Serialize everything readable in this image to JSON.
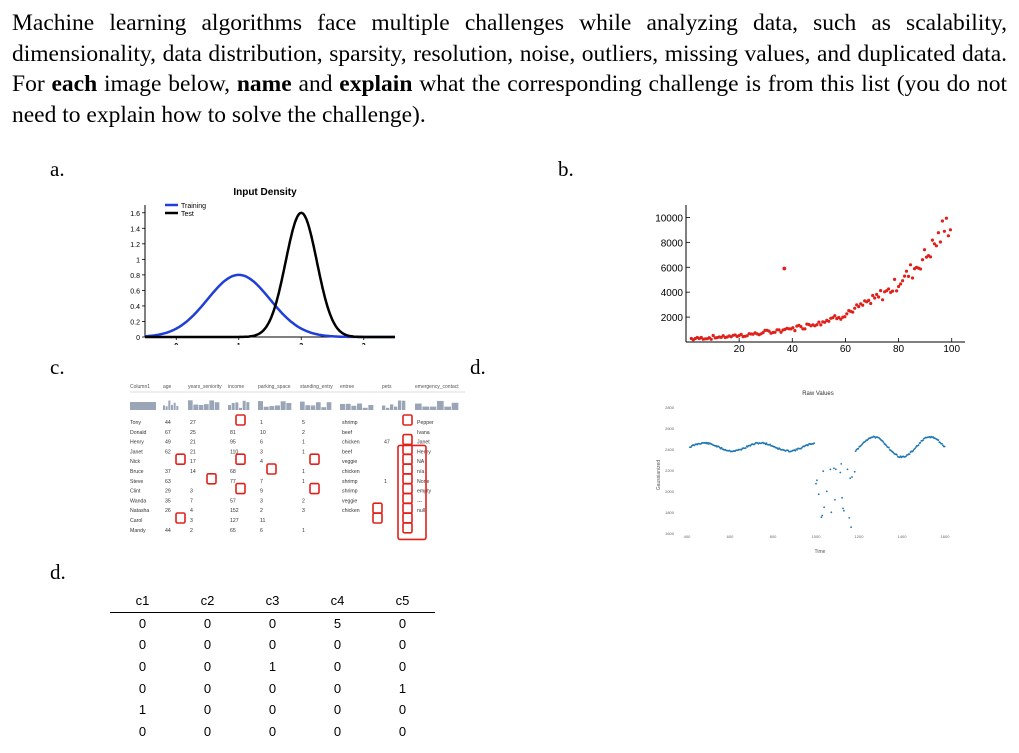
{
  "question": {
    "t1": "Machine learning algorithms face multiple challenges while analyzing data, such as scalability, dimensionality, data distribution, sparsity, resolution, noise, outliers, missing values, and duplicated data. For ",
    "b1": "each",
    "t2": " image below, ",
    "b2": "name",
    "t3": " and ",
    "b3": "explain",
    "t4": " what the corresponding challenge is from this list (you do not need to explain how to solve the challenge)."
  },
  "labels": {
    "a": "a.",
    "b": "b.",
    "c": "c.",
    "d_first": "d.",
    "d_second": "d."
  },
  "fig_a": {
    "title": "Input Density",
    "legend": [
      "Training",
      "Test"
    ],
    "y_ticks": [
      "1.6",
      "1.4",
      "1.2",
      "1",
      "0.8",
      "0.6",
      "0.4",
      "0.2",
      "0"
    ],
    "x_ticks": [
      "0",
      "1",
      "2",
      "3"
    ],
    "colors": {
      "training": "#1f3fd8",
      "test": "#000000"
    },
    "chart_data": {
      "type": "line",
      "title": "Input Density",
      "xlim": [
        -0.5,
        3.5
      ],
      "ylim": [
        0,
        1.7
      ],
      "series": [
        {
          "name": "Training",
          "mean": 1.0,
          "sd": 0.5,
          "peak": 0.8
        },
        {
          "name": "Test",
          "mean": 2.0,
          "sd": 0.25,
          "peak": 1.6
        }
      ]
    }
  },
  "fig_b": {
    "y_ticks": [
      "10000",
      "8000",
      "6000",
      "4000",
      "2000"
    ],
    "x_ticks": [
      "20",
      "40",
      "60",
      "80",
      "100"
    ],
    "color": "#e0201b",
    "chart_data": {
      "type": "scatter",
      "xlim": [
        0,
        105
      ],
      "ylim": [
        0,
        11000
      ],
      "trend": "exponential growth from about 250 at x=0 to about 10000 at x=100",
      "outlier": {
        "x": 37,
        "y": 5900
      }
    }
  },
  "fig_c": {
    "headers": [
      "Column1",
      "age",
      "years_seniority",
      "income",
      "parking_space",
      "standing_entry",
      "entree",
      "pets",
      "emergency_contact"
    ],
    "rows": [
      [
        "Tony",
        "44",
        "27",
        "",
        "1",
        "5",
        "shrimp",
        "",
        "Pepper"
      ],
      [
        "Donald",
        "67",
        "25",
        "81",
        "10",
        "2",
        "beef",
        "",
        "Ivana"
      ],
      [
        "Henry",
        "49",
        "21",
        "95",
        "6",
        "1",
        "chicken",
        "47",
        "Janet"
      ],
      [
        "Janet",
        "62",
        "21",
        "110",
        "3",
        "1",
        "beef",
        "",
        "Henry"
      ],
      [
        "Nick",
        "",
        "17",
        "",
        "4",
        "",
        "veggie",
        "",
        "NA"
      ],
      [
        "Bruce",
        "37",
        "14",
        "68",
        "",
        "1",
        "chicken",
        "",
        "n/a"
      ],
      [
        "Steve",
        "63",
        "",
        "77",
        "7",
        "1",
        "shrimp",
        "1",
        "None"
      ],
      [
        "Clint",
        "29",
        "3",
        "",
        "9",
        "",
        "shrimp",
        "",
        "empty"
      ],
      [
        "Wanda",
        "35",
        "7",
        "57",
        "3",
        "2",
        "veggie",
        "",
        "---"
      ],
      [
        "Natasha",
        "26",
        "4",
        "152",
        "2",
        "3",
        "chicken",
        "",
        "null"
      ],
      [
        "Carol",
        "",
        "3",
        "127",
        "11",
        "",
        "",
        "",
        ""
      ],
      [
        "Mandy",
        "44",
        "2",
        "65",
        "6",
        "1",
        "",
        "",
        ""
      ]
    ],
    "highlight_color": "#e0201b"
  },
  "fig_d": {
    "title": "Raw Values",
    "y_axis_label": "Gaussianized",
    "x_axis_label": "Time",
    "y_ticks": [
      "2800",
      "2600",
      "2400",
      "2200",
      "2000",
      "1800",
      "1600"
    ],
    "x_ticks": [
      "400",
      "600",
      "800",
      "1000",
      "1200",
      "1400",
      "1600"
    ],
    "color": "#1f77b4",
    "chart_data": {
      "type": "line",
      "title": "Raw Values",
      "xlabel": "Time",
      "ylabel": "Gaussianized",
      "note": "periodic oscillation with a noisy dropout region around x = 900-1000"
    }
  },
  "table_d": {
    "headers": [
      "c1",
      "c2",
      "c3",
      "c4",
      "c5"
    ],
    "rows": [
      [
        "0",
        "0",
        "0",
        "5",
        "0"
      ],
      [
        "0",
        "0",
        "0",
        "0",
        "0"
      ],
      [
        "0",
        "0",
        "1",
        "0",
        "0"
      ],
      [
        "0",
        "0",
        "0",
        "0",
        "1"
      ],
      [
        "1",
        "0",
        "0",
        "0",
        "0"
      ],
      [
        "0",
        "0",
        "0",
        "0",
        "0"
      ]
    ]
  }
}
